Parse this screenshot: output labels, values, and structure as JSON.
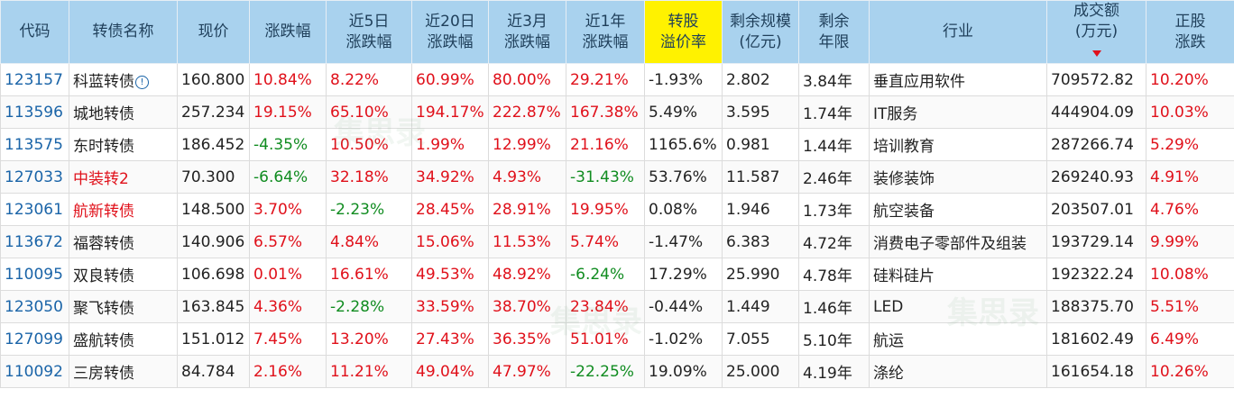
{
  "headers": {
    "code": "代码",
    "name": "转债名称",
    "price": "现价",
    "change": "涨跌幅",
    "chg5d_l1": "近5日",
    "chg5d_l2": "涨跌幅",
    "chg20d_l1": "近20日",
    "chg20d_l2": "涨跌幅",
    "chg3m_l1": "近3月",
    "chg3m_l2": "涨跌幅",
    "chg1y_l1": "近1年",
    "chg1y_l2": "涨跌幅",
    "premium_l1": "转股",
    "premium_l2": "溢价率",
    "scale_l1": "剩余规模",
    "scale_l2": "(亿元)",
    "years_l1": "剩余",
    "years_l2": "年限",
    "industry": "行业",
    "volume_l1": "成交额",
    "volume_l2": "(万元)",
    "stock_l1": "正股",
    "stock_l2": "涨跌"
  },
  "header_highlight_color": "#fff200",
  "header_bg_color": "#a9d2ee",
  "rows": [
    {
      "code": "123157",
      "name": "科蓝转债",
      "price": "160.800",
      "change": "10.84%",
      "chg5d": "8.22%",
      "chg20d": "60.99%",
      "chg3m": "80.00%",
      "chg1y": "29.21%",
      "premium": "-1.93%",
      "scale": "2.802",
      "years": "3.84年",
      "industry": "垂直应用软件",
      "volume": "709572.82",
      "stock": "10.20%"
    },
    {
      "code": "113596",
      "name": "城地转债",
      "price": "257.234",
      "change": "19.15%",
      "chg5d": "65.10%",
      "chg20d": "194.17%",
      "chg3m": "222.87%",
      "chg1y": "167.38%",
      "premium": "5.49%",
      "scale": "3.595",
      "years": "1.74年",
      "industry": "IT服务",
      "volume": "444904.09",
      "stock": "10.03%"
    },
    {
      "code": "113575",
      "name": "东时转债",
      "price": "186.452",
      "change": "-4.35%",
      "chg5d": "10.50%",
      "chg20d": "1.99%",
      "chg3m": "12.99%",
      "chg1y": "21.16%",
      "premium": "1165.6%",
      "scale": "0.981",
      "years": "1.44年",
      "industry": "培训教育",
      "volume": "287266.74",
      "stock": "5.29%"
    },
    {
      "code": "127033",
      "name": "中装转2",
      "price": "70.300",
      "change": "-6.64%",
      "chg5d": "32.18%",
      "chg20d": "34.92%",
      "chg3m": "4.93%",
      "chg1y": "-31.43%",
      "premium": "53.76%",
      "scale": "11.587",
      "years": "2.46年",
      "industry": "装修装饰",
      "volume": "269240.93",
      "stock": "4.91%"
    },
    {
      "code": "123061",
      "name": "航新转债",
      "price": "148.500",
      "change": "3.70%",
      "chg5d": "-2.23%",
      "chg20d": "28.45%",
      "chg3m": "28.91%",
      "chg1y": "19.95%",
      "premium": "0.08%",
      "scale": "1.946",
      "years": "1.73年",
      "industry": "航空装备",
      "volume": "203507.01",
      "stock": "4.76%"
    },
    {
      "code": "113672",
      "name": "福蓉转债",
      "price": "140.906",
      "change": "6.57%",
      "chg5d": "4.84%",
      "chg20d": "15.06%",
      "chg3m": "11.53%",
      "chg1y": "5.74%",
      "premium": "-1.47%",
      "scale": "6.383",
      "years": "4.72年",
      "industry": "消费电子零部件及组装",
      "volume": "193729.14",
      "stock": "9.99%"
    },
    {
      "code": "110095",
      "name": "双良转债",
      "price": "106.698",
      "change": "0.01%",
      "chg5d": "16.61%",
      "chg20d": "49.53%",
      "chg3m": "48.92%",
      "chg1y": "-6.24%",
      "premium": "17.29%",
      "scale": "25.990",
      "years": "4.78年",
      "industry": "硅料硅片",
      "volume": "192322.24",
      "stock": "10.08%"
    },
    {
      "code": "123050",
      "name": "聚飞转债",
      "price": "163.845",
      "change": "4.36%",
      "chg5d": "-2.28%",
      "chg20d": "33.59%",
      "chg3m": "38.70%",
      "chg1y": "23.84%",
      "premium": "-0.44%",
      "scale": "1.449",
      "years": "1.46年",
      "industry": "LED",
      "volume": "188375.70",
      "stock": "5.51%"
    },
    {
      "code": "127099",
      "name": "盛航转债",
      "price": "151.012",
      "change": "7.45%",
      "chg5d": "13.20%",
      "chg20d": "27.43%",
      "chg3m": "36.35%",
      "chg1y": "51.01%",
      "premium": "-1.02%",
      "scale": "7.055",
      "years": "5.10年",
      "industry": "航运",
      "volume": "181602.49",
      "stock": "6.49%"
    },
    {
      "code": "110092",
      "name": "三房转债",
      "price": "84.784",
      "change": "2.16%",
      "chg5d": "11.21%",
      "chg20d": "49.04%",
      "chg3m": "47.97%",
      "chg1y": "-22.25%",
      "premium": "19.09%",
      "scale": "25.000",
      "years": "4.19年",
      "industry": "涤纶",
      "volume": "161654.18",
      "stock": "10.26%"
    }
  ],
  "red_name_rows": [
    3,
    4
  ],
  "info_icon_row": 0,
  "watermark": "集思录"
}
